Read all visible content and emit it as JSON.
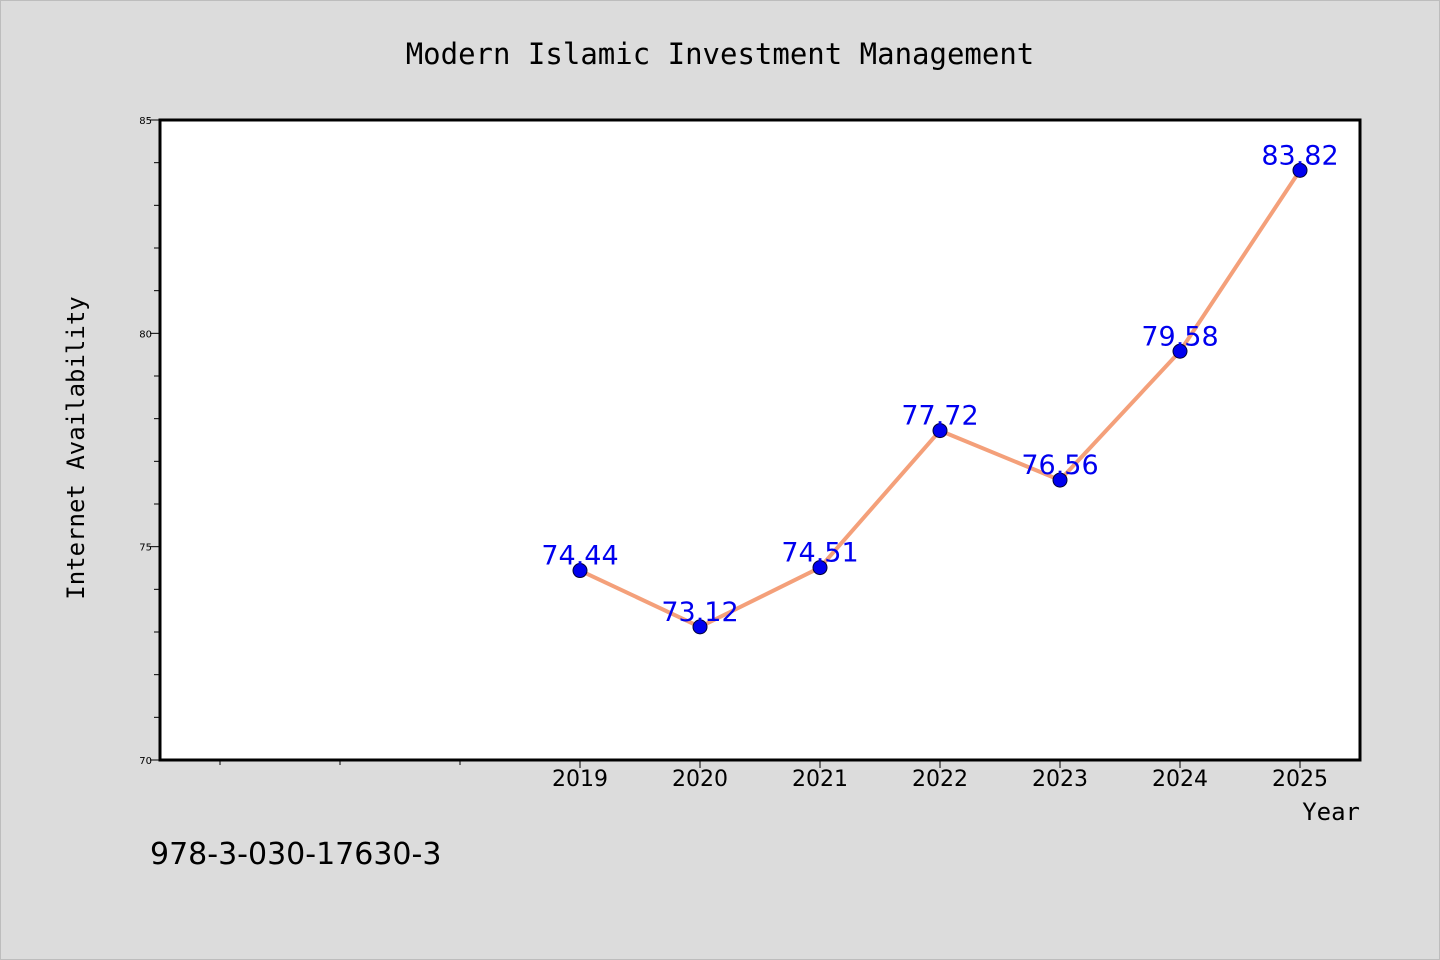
{
  "chart_data": {
    "type": "line",
    "title": "Modern Islamic Investment Management",
    "xlabel": "Year",
    "ylabel": "Internet Availability",
    "footnote": "978-3-030-17630-3",
    "x": [
      "2019",
      "2020",
      "2021",
      "2022",
      "2023",
      "2024",
      "2025"
    ],
    "values": [
      74.44,
      73.12,
      74.51,
      77.72,
      76.56,
      79.58,
      83.82
    ],
    "data_labels": [
      "74.44",
      "73.12",
      "74.51",
      "77.72",
      "76.56",
      "79.58",
      "83.82"
    ],
    "ylim": [
      70,
      85
    ],
    "yticks": [
      "70",
      "75",
      "80",
      "85"
    ],
    "x_slots": 10,
    "first_label_slot": 3,
    "grid": false,
    "legend": "none",
    "colors": {
      "line": "#f4a07a",
      "marker": "#0000ee",
      "data_label": "#0000ee",
      "background": "#dcdcdc",
      "plot_background": "#ffffff",
      "text": "#000000"
    }
  }
}
